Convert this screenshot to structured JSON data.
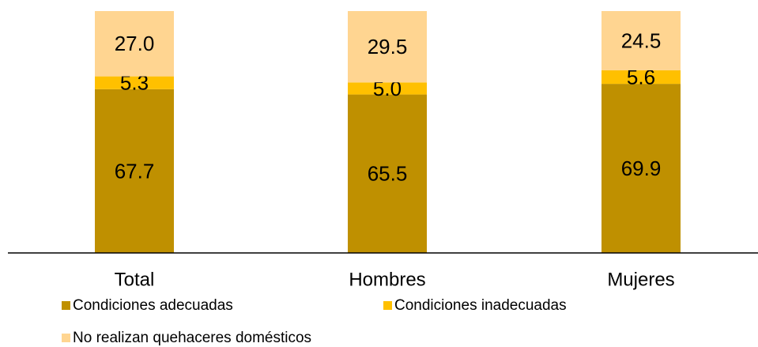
{
  "chart_data": {
    "type": "bar",
    "stacked": true,
    "categories": [
      "Total",
      "Hombres",
      "Mujeres"
    ],
    "ylim": [
      0,
      100
    ],
    "series": [
      {
        "name": "Condiciones adecuadas",
        "color": "#BF9000",
        "values": [
          67.7,
          65.5,
          69.9
        ],
        "value_labels": [
          "67.7",
          "65.5",
          "69.9"
        ]
      },
      {
        "name": "Condiciones inadecuadas",
        "color": "#FFC000",
        "values": [
          5.3,
          5.0,
          5.6
        ],
        "value_labels": [
          "5.3",
          "5.0",
          "5.6"
        ]
      },
      {
        "name": "No realizan quehaceres domésticos",
        "color": "#FFD591",
        "values": [
          27.0,
          29.5,
          24.5
        ],
        "value_labels": [
          "27.0",
          "29.5",
          "24.5"
        ]
      }
    ]
  }
}
